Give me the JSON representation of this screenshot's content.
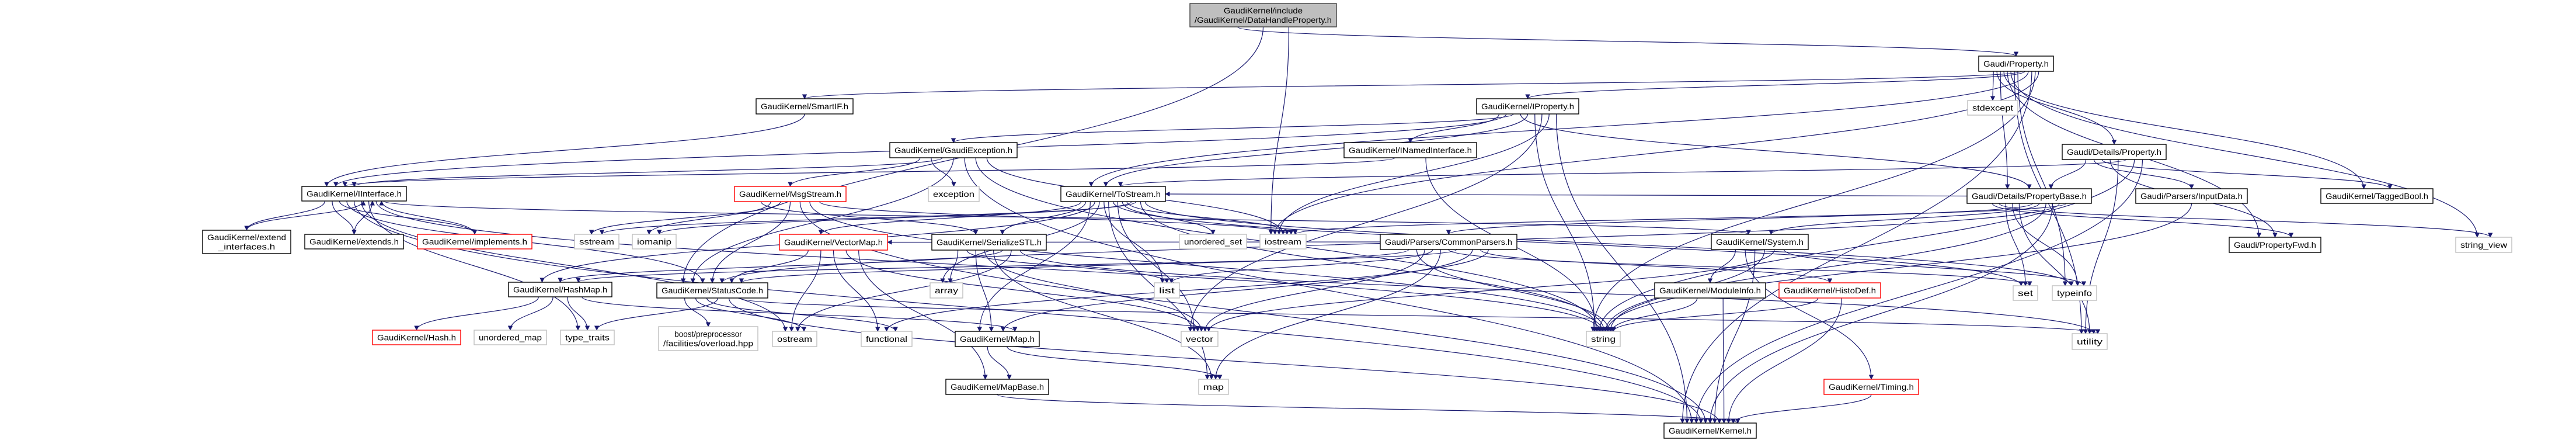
{
  "colors": {
    "edge": "#191970",
    "root_fill": "#bfbfbf",
    "normal_border": "#000000",
    "truncated_border": "#ff0000",
    "external_border": "#bfbfbf"
  },
  "nodes": [
    {
      "lines": [
        "GaudiKernel/include",
        "/GaudiKernel/DataHandleProperty.h"
      ],
      "style": "root"
    },
    {
      "lines": [
        "Gaudi/Property.h"
      ],
      "style": "normal"
    },
    {
      "lines": [
        "GaudiKernel/SmartIF.h"
      ],
      "style": "normal"
    },
    {
      "lines": [
        "GaudiKernel/IProperty.h"
      ],
      "style": "normal"
    },
    {
      "lines": [
        "stdexcept"
      ],
      "style": "external"
    },
    {
      "lines": [
        "GaudiKernel/GaudiException.h"
      ],
      "style": "normal"
    },
    {
      "lines": [
        "GaudiKernel/INamedInterface.h"
      ],
      "style": "normal"
    },
    {
      "lines": [
        "Gaudi/Details/Property.h"
      ],
      "style": "normal"
    },
    {
      "lines": [
        "GaudiKernel/IInterface.h"
      ],
      "style": "normal"
    },
    {
      "lines": [
        "GaudiKernel/MsgStream.h"
      ],
      "style": "truncated"
    },
    {
      "lines": [
        "exception"
      ],
      "style": "external"
    },
    {
      "lines": [
        "GaudiKernel/ToStream.h"
      ],
      "style": "normal"
    },
    {
      "lines": [
        "Gaudi/Details/PropertyBase.h"
      ],
      "style": "normal"
    },
    {
      "lines": [
        "Gaudi/Parsers/InputData.h"
      ],
      "style": "normal"
    },
    {
      "lines": [
        "GaudiKernel/TaggedBool.h"
      ],
      "style": "normal"
    },
    {
      "lines": [
        "GaudiKernel/extend",
        "_interfaces.h"
      ],
      "style": "normal"
    },
    {
      "lines": [
        "GaudiKernel/extends.h"
      ],
      "style": "normal"
    },
    {
      "lines": [
        "GaudiKernel/implements.h"
      ],
      "style": "truncated"
    },
    {
      "lines": [
        "sstream"
      ],
      "style": "external"
    },
    {
      "lines": [
        "iomanip"
      ],
      "style": "external"
    },
    {
      "lines": [
        "GaudiKernel/VectorMap.h"
      ],
      "style": "truncated"
    },
    {
      "lines": [
        "GaudiKernel/SerializeSTL.h"
      ],
      "style": "normal"
    },
    {
      "lines": [
        "unordered_set"
      ],
      "style": "external"
    },
    {
      "lines": [
        "iostream"
      ],
      "style": "external"
    },
    {
      "lines": [
        "Gaudi/Parsers/CommonParsers.h"
      ],
      "style": "normal"
    },
    {
      "lines": [
        "GaudiKernel/System.h"
      ],
      "style": "normal"
    },
    {
      "lines": [
        "Gaudi/PropertyFwd.h"
      ],
      "style": "normal"
    },
    {
      "lines": [
        "string_view"
      ],
      "style": "external"
    },
    {
      "lines": [
        "GaudiKernel/HashMap.h"
      ],
      "style": "normal"
    },
    {
      "lines": [
        "GaudiKernel/StatusCode.h"
      ],
      "style": "normal"
    },
    {
      "lines": [
        "array"
      ],
      "style": "external"
    },
    {
      "lines": [
        "list"
      ],
      "style": "external"
    },
    {
      "lines": [
        "GaudiKernel/ModuleInfo.h"
      ],
      "style": "normal"
    },
    {
      "lines": [
        "GaudiKernel/HistoDef.h"
      ],
      "style": "truncated"
    },
    {
      "lines": [
        "set"
      ],
      "style": "external"
    },
    {
      "lines": [
        "typeinfo"
      ],
      "style": "external"
    },
    {
      "lines": [
        "GaudiKernel/Hash.h"
      ],
      "style": "truncated"
    },
    {
      "lines": [
        "unordered_map"
      ],
      "style": "external"
    },
    {
      "lines": [
        "type_traits"
      ],
      "style": "external"
    },
    {
      "lines": [
        "boost/preprocessor",
        "/facilities/overload.hpp"
      ],
      "style": "external"
    },
    {
      "lines": [
        "ostream"
      ],
      "style": "external"
    },
    {
      "lines": [
        "functional"
      ],
      "style": "external"
    },
    {
      "lines": [
        "GaudiKernel/Map.h"
      ],
      "style": "normal"
    },
    {
      "lines": [
        "vector"
      ],
      "style": "external"
    },
    {
      "lines": [
        "string"
      ],
      "style": "external"
    },
    {
      "lines": [
        "utility"
      ],
      "style": "external"
    },
    {
      "lines": [
        "GaudiKernel/MapBase.h"
      ],
      "style": "normal"
    },
    {
      "lines": [
        "map"
      ],
      "style": "external"
    },
    {
      "lines": [
        "GaudiKernel/Timing.h"
      ],
      "style": "truncated"
    },
    {
      "lines": [
        "GaudiKernel/Kernel.h"
      ],
      "style": "normal"
    }
  ],
  "edges": [
    [
      0,
      1
    ],
    [
      0,
      29
    ],
    [
      0,
      23
    ],
    [
      1,
      4
    ],
    [
      1,
      7
    ],
    [
      1,
      12
    ],
    [
      1,
      14
    ],
    [
      1,
      26
    ],
    [
      1,
      27
    ],
    [
      1,
      45
    ],
    [
      1,
      35
    ],
    [
      1,
      2
    ],
    [
      1,
      3
    ],
    [
      1,
      11
    ],
    [
      1,
      49
    ],
    [
      1,
      44
    ],
    [
      1,
      23
    ],
    [
      2,
      8
    ],
    [
      3,
      6
    ],
    [
      3,
      8
    ],
    [
      3,
      5
    ],
    [
      3,
      12
    ],
    [
      3,
      11
    ],
    [
      3,
      44
    ],
    [
      3,
      43
    ],
    [
      3,
      23
    ],
    [
      3,
      49
    ],
    [
      6,
      8
    ],
    [
      6,
      44
    ],
    [
      5,
      9
    ],
    [
      5,
      10
    ],
    [
      5,
      8
    ],
    [
      5,
      29
    ],
    [
      5,
      49
    ],
    [
      5,
      44
    ],
    [
      5,
      23
    ],
    [
      7,
      12
    ],
    [
      7,
      13
    ],
    [
      7,
      14
    ],
    [
      7,
      26
    ],
    [
      7,
      45
    ],
    [
      7,
      11
    ],
    [
      7,
      44
    ],
    [
      7,
      49
    ],
    [
      8,
      15
    ],
    [
      8,
      16
    ],
    [
      8,
      17
    ],
    [
      8,
      29
    ],
    [
      8,
      49
    ],
    [
      8,
      40
    ],
    [
      8,
      38
    ],
    [
      8,
      44
    ],
    [
      8,
      25
    ],
    [
      15,
      8
    ],
    [
      16,
      8
    ],
    [
      17,
      8
    ],
    [
      9,
      21
    ],
    [
      9,
      19
    ],
    [
      9,
      18
    ],
    [
      9,
      29
    ],
    [
      9,
      49
    ],
    [
      9,
      44
    ],
    [
      9,
      23
    ],
    [
      11,
      20
    ],
    [
      11,
      21
    ],
    [
      11,
      42
    ],
    [
      11,
      28
    ],
    [
      11,
      30
    ],
    [
      11,
      31
    ],
    [
      11,
      47
    ],
    [
      11,
      34
    ],
    [
      11,
      43
    ],
    [
      11,
      22
    ],
    [
      11,
      23
    ],
    [
      11,
      19
    ],
    [
      11,
      18
    ],
    [
      11,
      44
    ],
    [
      11,
      35
    ],
    [
      12,
      26
    ],
    [
      12,
      27
    ],
    [
      12,
      34
    ],
    [
      12,
      35
    ],
    [
      12,
      45
    ],
    [
      12,
      11
    ],
    [
      12,
      24
    ],
    [
      12,
      25
    ],
    [
      12,
      44
    ],
    [
      12,
      49
    ],
    [
      12,
      29
    ],
    [
      12,
      23
    ],
    [
      13,
      44
    ],
    [
      20,
      29
    ],
    [
      20,
      40
    ],
    [
      20,
      41
    ],
    [
      20,
      43
    ],
    [
      20,
      46
    ],
    [
      21,
      30
    ],
    [
      21,
      31
    ],
    [
      21,
      42
    ],
    [
      21,
      43
    ],
    [
      21,
      47
    ],
    [
      21,
      28
    ],
    [
      21,
      40
    ],
    [
      21,
      45
    ],
    [
      24,
      29
    ],
    [
      24,
      44
    ],
    [
      24,
      43
    ],
    [
      24,
      31
    ],
    [
      24,
      47
    ],
    [
      24,
      34
    ],
    [
      24,
      28
    ],
    [
      24,
      20
    ],
    [
      24,
      42
    ],
    [
      24,
      33
    ],
    [
      24,
      41
    ],
    [
      25,
      32
    ],
    [
      25,
      48
    ],
    [
      25,
      49
    ],
    [
      25,
      44
    ],
    [
      25,
      43
    ],
    [
      25,
      35
    ],
    [
      28,
      36
    ],
    [
      28,
      37
    ],
    [
      28,
      38
    ],
    [
      28,
      42
    ],
    [
      29,
      39
    ],
    [
      29,
      40
    ],
    [
      29,
      41
    ],
    [
      29,
      38
    ],
    [
      29,
      49
    ],
    [
      29,
      45
    ],
    [
      42,
      46
    ],
    [
      42,
      47
    ],
    [
      32,
      44
    ],
    [
      32,
      49
    ],
    [
      33,
      44
    ],
    [
      33,
      49
    ],
    [
      48,
      49
    ],
    [
      46,
      49
    ]
  ]
}
